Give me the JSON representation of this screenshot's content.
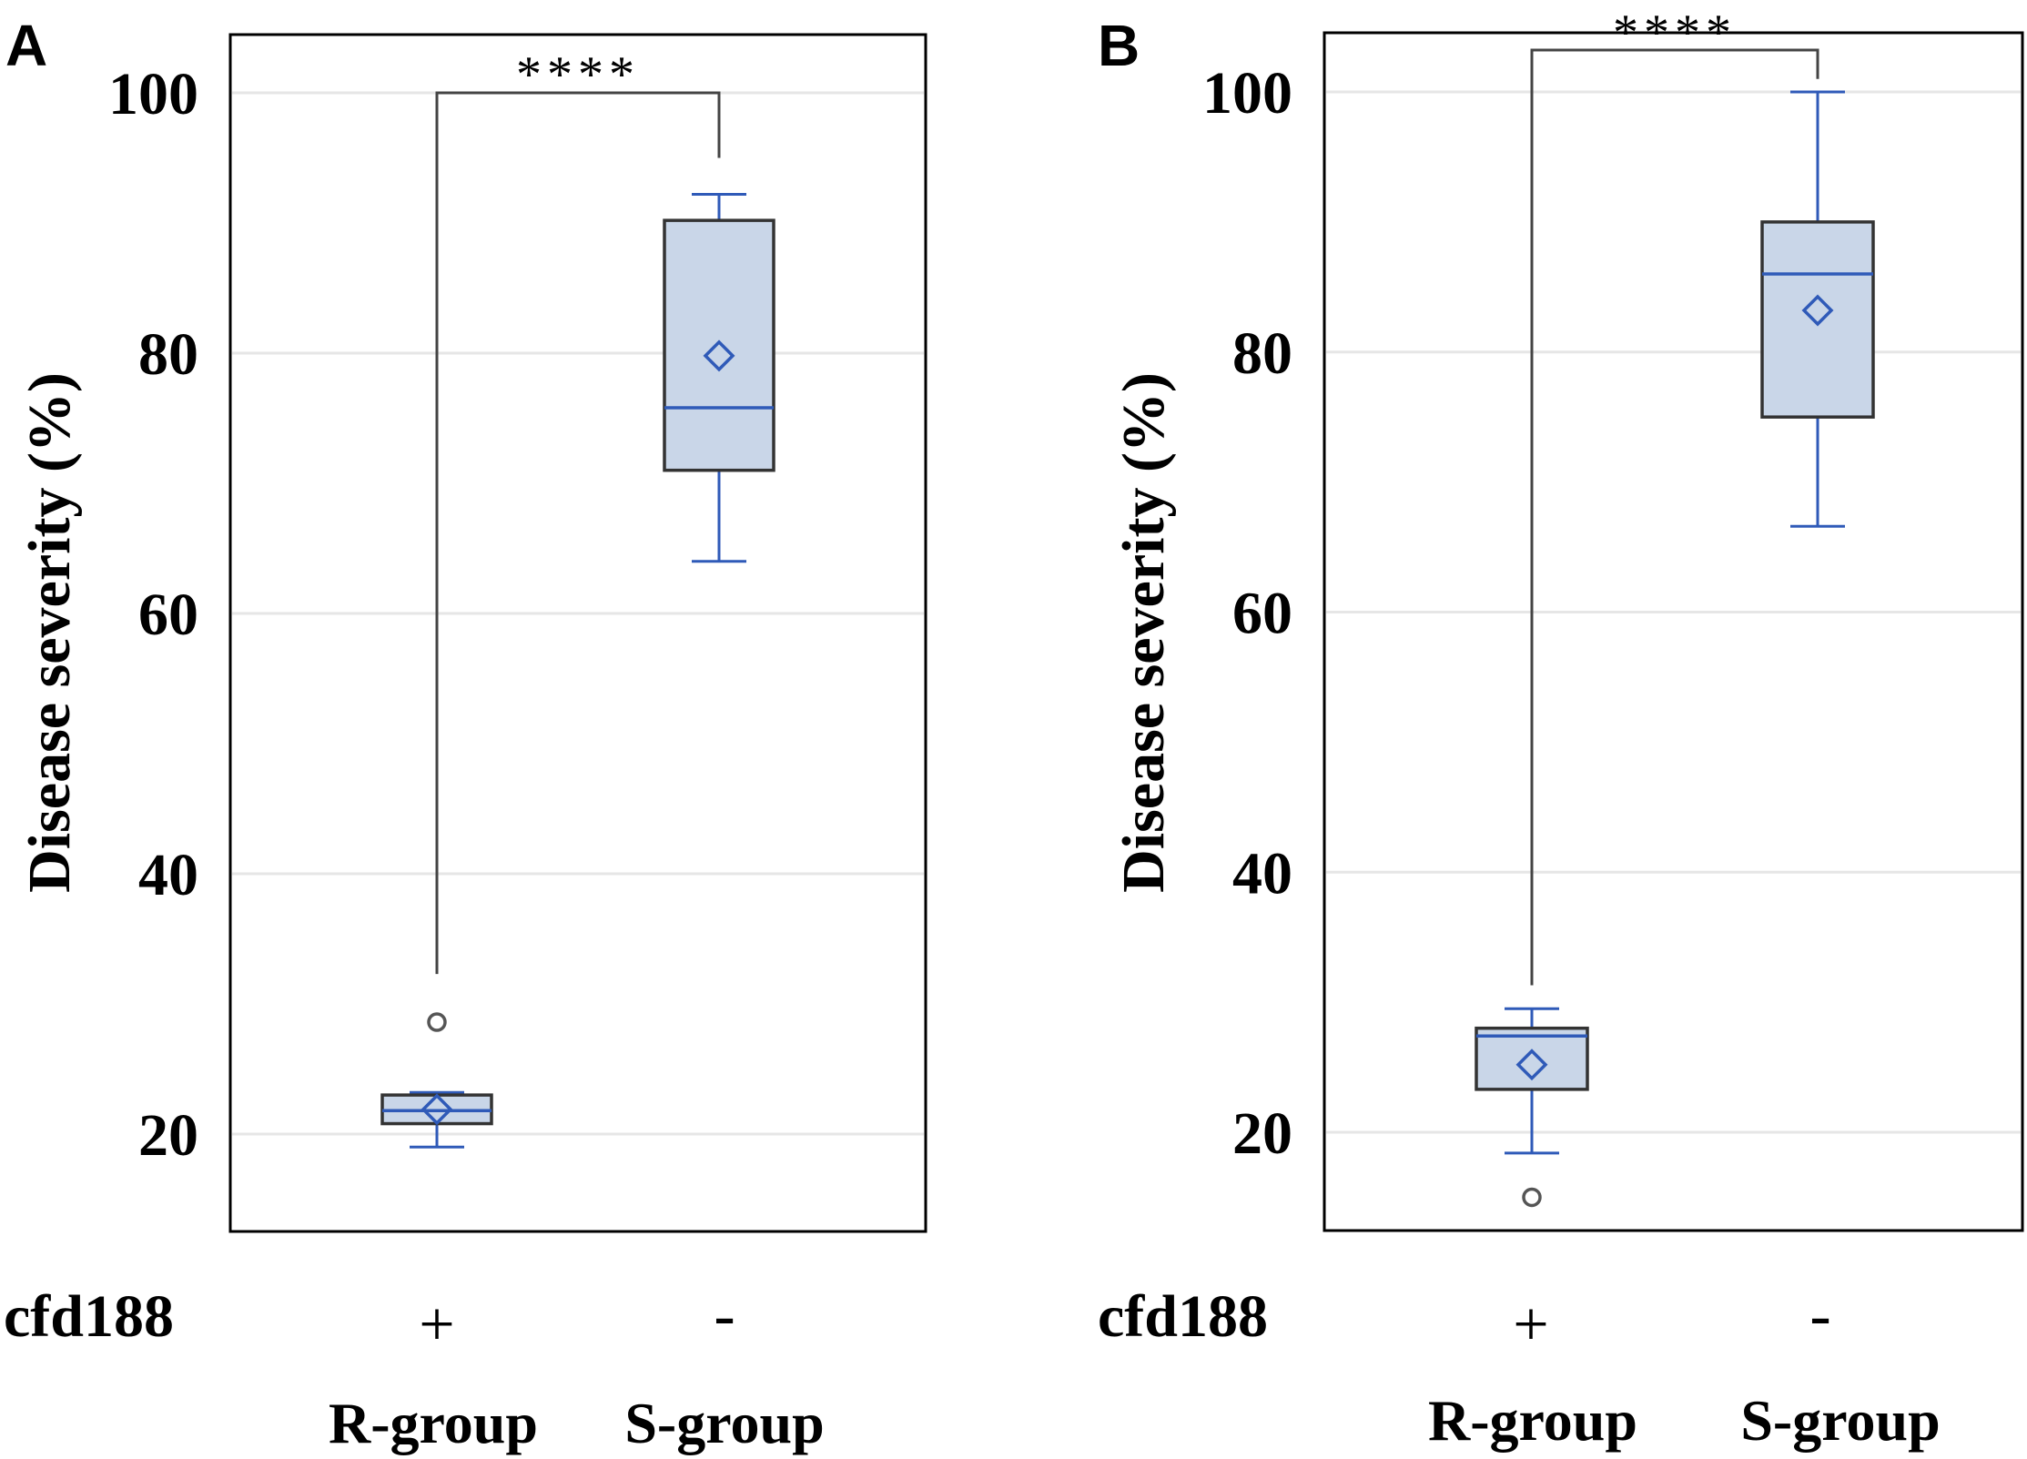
{
  "chart_data": [
    {
      "panel": "A",
      "type": "box",
      "ylabel": "Disease severity (%)",
      "ylim": [
        12.5,
        104.5
      ],
      "yticks": [
        20,
        40,
        60,
        80,
        100
      ],
      "grid": true,
      "row_label": "cfd188",
      "groups": [
        {
          "name": "R-group",
          "marker": "+",
          "min": 19,
          "q1": 20.8,
          "median": 21.8,
          "q3": 23,
          "max": 23.2,
          "mean": 21.9,
          "outliers": [
            28.6
          ]
        },
        {
          "name": "S-group",
          "marker": "-",
          "min": 64,
          "q1": 71,
          "median": 75.8,
          "q3": 90.2,
          "max": 92.2,
          "mean": 79.8,
          "outliers": []
        }
      ],
      "significance": {
        "label": "****",
        "bracket_y": 100.2,
        "left_end": 32.3,
        "right_end": 95
      }
    },
    {
      "panel": "B",
      "type": "box",
      "ylabel": "Disease severity (%)",
      "ylim": [
        12.5,
        104.5
      ],
      "yticks": [
        20,
        40,
        60,
        80,
        100
      ],
      "grid": true,
      "row_label": "cfd188",
      "groups": [
        {
          "name": "R-group",
          "marker": "+",
          "min": 18.4,
          "q1": 23.3,
          "median": 27.4,
          "q3": 28,
          "max": 29.5,
          "mean": 25.2,
          "outliers": [
            15
          ]
        },
        {
          "name": "S-group",
          "marker": "-",
          "min": 66.6,
          "q1": 75,
          "median": 86,
          "q3": 90,
          "max": 100,
          "mean": 83.2,
          "outliers": []
        }
      ],
      "significance": {
        "label": "****",
        "bracket_y": 103.3,
        "left_end": 31.3,
        "right_end": 101
      }
    }
  ],
  "colors": {
    "box_fill": "#c9d6e8",
    "box_edge": "#333333",
    "whisker": "#2f5ab8",
    "median": "#2f5ab8",
    "mean_marker": "#2f5ab8",
    "outlier": "#555555",
    "grid": "#e6e6e6",
    "bracket": "#444444"
  }
}
